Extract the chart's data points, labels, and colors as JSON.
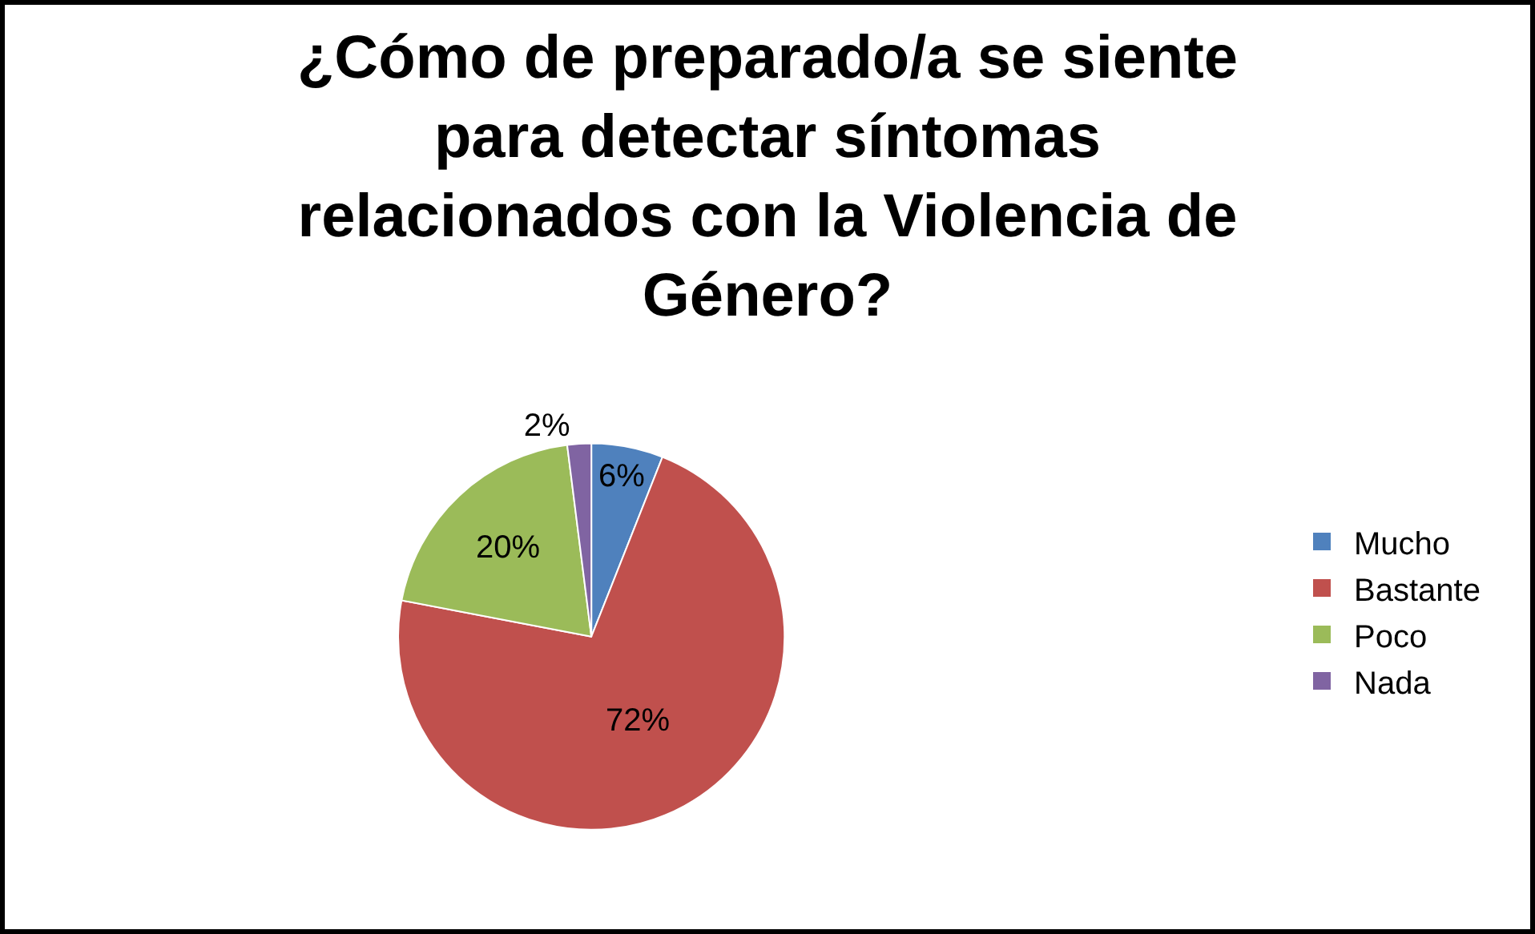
{
  "chart_data": {
    "type": "pie",
    "title": "¿Cómo de preparado/a se siente para detectar síntomas relacionados con la Violencia de Género?",
    "categories": [
      "Mucho",
      "Bastante",
      "Poco",
      "Nada"
    ],
    "values": [
      6,
      72,
      20,
      2
    ],
    "colors": [
      "#4f81bd",
      "#c0504d",
      "#9bbb59",
      "#8064a2"
    ],
    "value_labels": [
      "6%",
      "72%",
      "20%",
      "2%"
    ],
    "legend": "right"
  }
}
